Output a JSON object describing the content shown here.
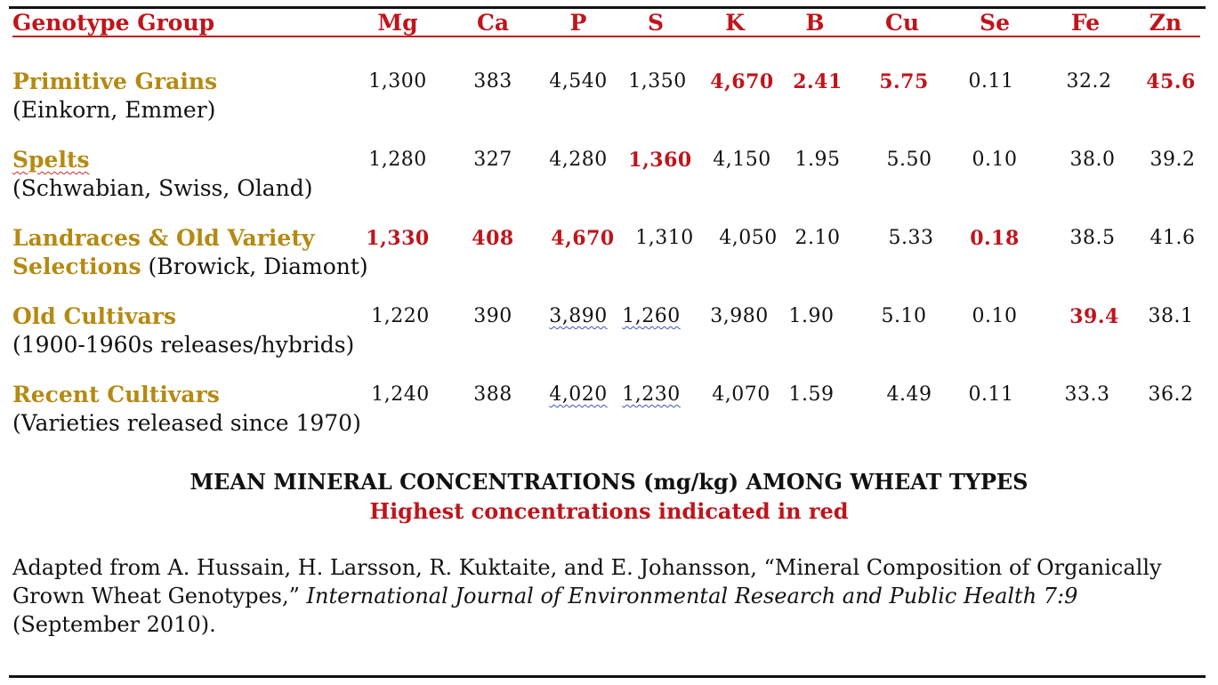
{
  "table": {
    "group_header": "Genotype Group",
    "columns": [
      "Mg",
      "Ca",
      "P",
      "S",
      "K",
      "B",
      "Cu",
      "Se",
      "Fe",
      "Zn"
    ],
    "rows": [
      {
        "title": "Primitive Grains",
        "subtitle_line": "(Einkorn, Emmer)",
        "values": [
          "1,300",
          "383",
          "4,540",
          "1,350",
          "4,670",
          "2.41",
          "5.75",
          "0.11",
          "32.2",
          "45.6"
        ]
      },
      {
        "title": "Spelts",
        "subtitle_line": "(Schwabian, Swiss, Oland)",
        "values": [
          "1,280",
          "327",
          "4,280",
          "1,360",
          "4,150",
          "1.95",
          "5.50",
          "0.10",
          "38.0",
          "39.2"
        ]
      },
      {
        "title": "Landraces & Old Variety",
        "title_line2": "Selections",
        "subtitle_inline": "(Browick, Diamont)",
        "values": [
          "1,330",
          "408",
          "4,670",
          "1,310",
          "4,050",
          "2.10",
          "5.33",
          "0.18",
          "38.5",
          "41.6"
        ]
      },
      {
        "title": "Old Cultivars",
        "subtitle_line": "(1900-1960s releases/hybrids)",
        "values": [
          "1,220",
          "390",
          "3,890",
          "1,260",
          "3,980",
          "1.90",
          "5.10",
          "0.10",
          "39.4",
          "38.1"
        ]
      },
      {
        "title": "Recent Cultivars",
        "subtitle_line": "(Varieties released since 1970)",
        "values": [
          "1,240",
          "388",
          "4,020",
          "1,230",
          "4,070",
          "1.59",
          "4.49",
          "0.11",
          "33.3",
          "36.2"
        ]
      }
    ]
  },
  "caption": {
    "main": "MEAN MINERAL CONCENTRATIONS (mg/kg) AMONG WHEAT TYPES",
    "sub": "Highest concentrations indicated in red"
  },
  "source": {
    "prefix": "Adapted from A. Hussain, H. Larsson, R. Kuktaite, and E. Johansson, “Mineral Composition of Organically Grown Wheat Genotypes,” ",
    "journal": "International Journal of Environmental Research and Public Health 7:9",
    "suffix": " (September 2010)."
  },
  "colors": {
    "highlight": "#c0141b",
    "group_title": "#b58a12",
    "text": "#111111"
  }
}
